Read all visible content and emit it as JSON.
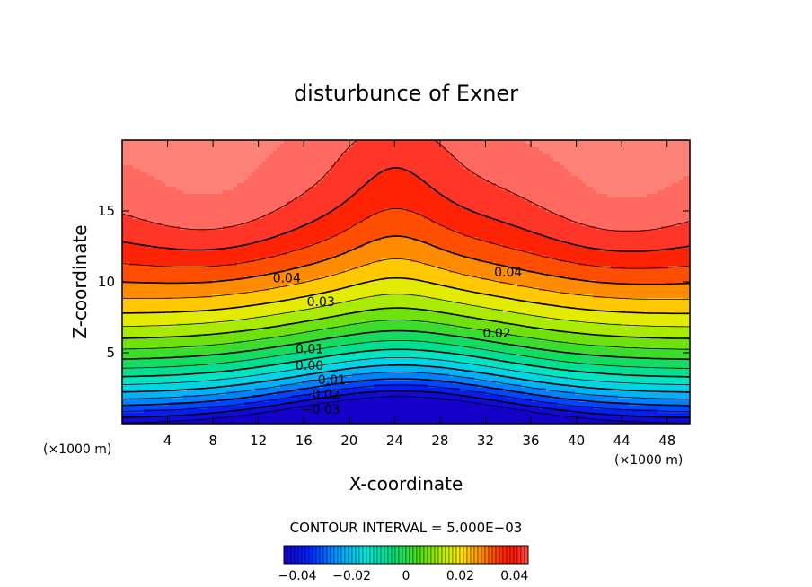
{
  "chart_data": {
    "type": "contour",
    "title": "disturbunce of Exner",
    "xlabel": "X-coordinate",
    "ylabel": "Z-coordinate",
    "x_unit": "(×1000 m)",
    "x_unit_right": "(×1000 m)",
    "xlim": [
      0,
      50
    ],
    "ylim": [
      0,
      20
    ],
    "xticks": [
      4,
      8,
      12,
      16,
      20,
      24,
      28,
      32,
      36,
      40,
      44,
      48
    ],
    "yticks": [
      5,
      10,
      15
    ],
    "contour_interval_text": "CONTOUR INTERVAL = 5.000E−03",
    "contour_interval": 0.005,
    "value_range": [
      -0.045,
      0.045
    ],
    "colormap": "rainbow (blue → cyan → green → yellow → orange → red → pink)",
    "negative_contours": "dashed",
    "grid": false,
    "contour_labels": [
      {
        "text": "0.04",
        "x": 14.5,
        "z": 10.3
      },
      {
        "text": "0.04",
        "x": 34.0,
        "z": 10.7
      },
      {
        "text": "0.03",
        "x": 17.5,
        "z": 8.6
      },
      {
        "text": "0.02",
        "x": 33.0,
        "z": 6.4
      },
      {
        "text": "0.01",
        "x": 16.5,
        "z": 5.3
      },
      {
        "text": "0.00",
        "x": 16.5,
        "z": 4.1
      },
      {
        "text": "−0.01",
        "x": 18.0,
        "z": 3.1
      },
      {
        "text": "−0.02",
        "x": 17.5,
        "z": 2.1
      },
      {
        "text": "−0.03",
        "x": 17.5,
        "z": 1.0
      }
    ],
    "colorbar": {
      "ticks": [
        -0.04,
        -0.02,
        0,
        0.02,
        0.04
      ],
      "tick_labels": [
        "−0.04",
        "−0.02",
        "0",
        "0.02",
        "0.04"
      ]
    }
  }
}
